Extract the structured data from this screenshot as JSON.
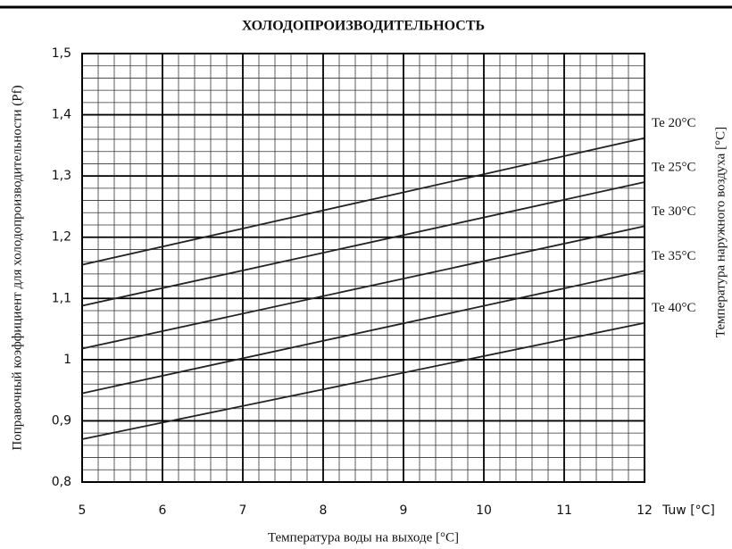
{
  "chart_data": {
    "type": "line",
    "title": "ХОЛОДОПРОИЗВОДИТЕЛЬНОСТЬ",
    "y_label": "Поправочный коэффициент для холодопроизводительности (Pf)",
    "x_label": "Температура воды на выходе [°C]",
    "x_unit_label": "Tuw [°C]",
    "y2_label": "Температура наружного воздуха [°C]",
    "x": [
      5,
      12
    ],
    "series": [
      {
        "name": "Te 20°C",
        "color": "#222222",
        "values": [
          1.155,
          1.362
        ]
      },
      {
        "name": "Te 25°C",
        "color": "#222222",
        "values": [
          1.088,
          1.29
        ]
      },
      {
        "name": "Te 30°C",
        "color": "#222222",
        "values": [
          1.018,
          1.218
        ]
      },
      {
        "name": "Te 35°C",
        "color": "#222222",
        "values": [
          0.945,
          1.145
        ]
      },
      {
        "name": "Te 40°C",
        "color": "#222222",
        "values": [
          0.87,
          1.06
        ]
      }
    ],
    "xlim": [
      5,
      12
    ],
    "ylim": [
      0.8,
      1.5
    ],
    "xticks": [
      5,
      6,
      7,
      8,
      9,
      10,
      11,
      12
    ],
    "yticks": [
      {
        "value": 0.8,
        "label": "0,8"
      },
      {
        "value": 0.9,
        "label": "0,9"
      },
      1,
      {
        "value": 1.1,
        "label": "1,1"
      },
      {
        "value": 1.2,
        "label": "1,2"
      },
      {
        "value": 1.3,
        "label": "1,3"
      },
      {
        "value": 1.4,
        "label": "1,4"
      },
      {
        "value": 1.5,
        "label": "1,5"
      }
    ],
    "grid": true,
    "minor_divisions": 5
  }
}
